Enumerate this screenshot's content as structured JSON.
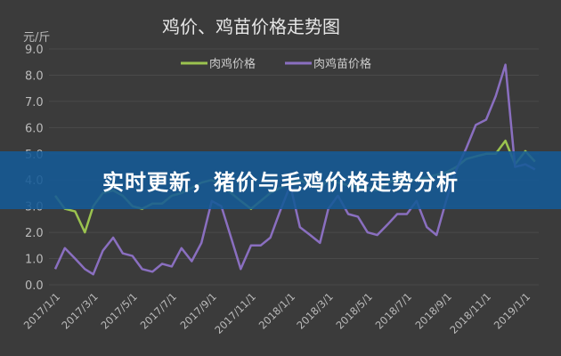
{
  "chart_data": {
    "type": "line",
    "title": "鸡价、鸡苗价格走势图",
    "ylabel": "元/斤",
    "xlabel": "",
    "ylim": [
      0,
      9
    ],
    "yticks": [
      "0.0",
      "1.0",
      "2.0",
      "3.0",
      "4.0",
      "5.0",
      "6.0",
      "7.0",
      "8.0",
      "9.0"
    ],
    "xticks": [
      "2017/1/1",
      "2017/3/1",
      "2017/5/1",
      "2017/7/1",
      "2017/9/1",
      "2017/11/1",
      "2018/1/1",
      "2018/3/1",
      "2018/5/1",
      "2018/7/1",
      "2018/9/1",
      "2018/11/1",
      "2019/1/1"
    ],
    "grid": true,
    "legend": "top-center",
    "x": [
      "2017-01-01",
      "2017-01-16",
      "2017-02-01",
      "2017-02-16",
      "2017-03-01",
      "2017-03-16",
      "2017-04-01",
      "2017-04-16",
      "2017-05-01",
      "2017-05-16",
      "2017-06-01",
      "2017-06-16",
      "2017-07-01",
      "2017-07-16",
      "2017-08-01",
      "2017-08-16",
      "2017-09-01",
      "2017-09-16",
      "2017-10-01",
      "2017-10-16",
      "2017-11-01",
      "2017-11-16",
      "2017-12-01",
      "2017-12-16",
      "2018-01-01",
      "2018-01-16",
      "2018-02-01",
      "2018-02-16",
      "2018-03-01",
      "2018-03-16",
      "2018-04-01",
      "2018-04-16",
      "2018-05-01",
      "2018-05-16",
      "2018-06-01",
      "2018-06-16",
      "2018-07-01",
      "2018-07-16",
      "2018-08-01",
      "2018-08-16",
      "2018-09-01",
      "2018-09-16",
      "2018-10-01",
      "2018-10-16",
      "2018-11-01",
      "2018-11-16",
      "2018-12-01",
      "2018-12-16",
      "2019-01-01",
      "2019-01-16"
    ],
    "series": [
      {
        "name": "肉鸡价格",
        "color": "#9bc34f",
        "values": [
          3.4,
          2.9,
          2.8,
          2.0,
          3.0,
          3.5,
          3.6,
          3.4,
          3.0,
          2.9,
          3.1,
          3.1,
          3.4,
          3.5,
          3.7,
          3.9,
          4.0,
          3.8,
          3.5,
          3.2,
          2.9,
          3.2,
          3.5,
          3.7,
          3.9,
          4.0,
          3.8,
          3.7,
          4.0,
          3.9,
          3.8,
          3.7,
          3.7,
          3.6,
          3.9,
          4.0,
          4.0,
          4.0,
          4.1,
          4.2,
          4.3,
          4.5,
          4.8,
          4.9,
          5.0,
          5.0,
          5.5,
          4.6,
          5.1,
          4.7
        ]
      },
      {
        "name": "肉鸡苗价格",
        "color": "#8a6fc0",
        "values": [
          0.6,
          1.4,
          1.0,
          0.6,
          0.4,
          1.3,
          1.8,
          1.2,
          1.1,
          0.6,
          0.5,
          0.8,
          0.7,
          1.4,
          0.9,
          1.6,
          3.2,
          3.0,
          1.8,
          0.6,
          1.5,
          1.5,
          1.8,
          2.8,
          3.8,
          2.2,
          1.9,
          1.6,
          2.9,
          3.4,
          2.7,
          2.6,
          2.0,
          1.9,
          2.3,
          2.7,
          2.7,
          3.2,
          2.2,
          1.9,
          3.3,
          4.4,
          5.2,
          6.1,
          6.3,
          7.2,
          8.4,
          4.5,
          4.6,
          4.4
        ]
      }
    ]
  },
  "banner": {
    "text": "实时更新，猪价与毛鸡价格走势分析"
  },
  "colors": {
    "background": "#3b3b3b",
    "banner": "#145a96"
  }
}
